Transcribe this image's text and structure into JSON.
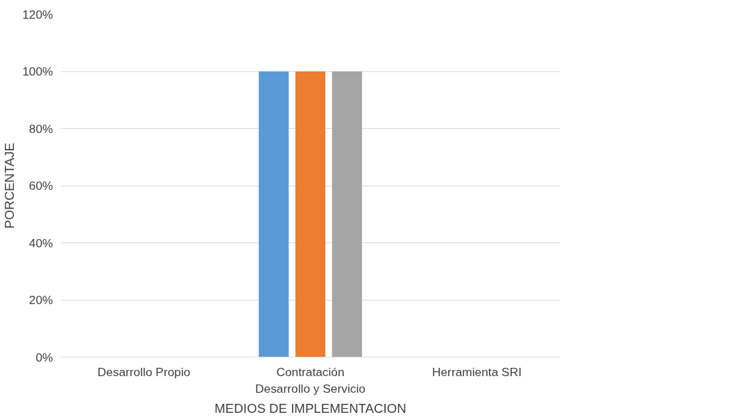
{
  "chart_data": {
    "type": "bar",
    "xlabel": "MEDIOS DE IMPLEMENTACION",
    "ylabel": "PORCENTAJE",
    "categories": [
      "Desarrollo Propio",
      "Contratación Desarrollo y Servicio",
      "Herramienta SRI"
    ],
    "series": [
      {
        "color": "#5b9bd5",
        "values": [
          0,
          100,
          0
        ]
      },
      {
        "color": "#ed7d31",
        "values": [
          0,
          100,
          0
        ]
      },
      {
        "color": "#a5a5a5",
        "values": [
          0,
          100,
          0
        ]
      }
    ],
    "ylim": [
      0,
      120
    ],
    "yticks": [
      {
        "value": 0,
        "label": "0%"
      },
      {
        "value": 20,
        "label": "20%"
      },
      {
        "value": 40,
        "label": "40%"
      },
      {
        "value": 60,
        "label": "60%"
      },
      {
        "value": 80,
        "label": "80%"
      },
      {
        "value": 100,
        "label": "100%"
      },
      {
        "value": 120,
        "label": "120%"
      }
    ],
    "grid": "y"
  }
}
